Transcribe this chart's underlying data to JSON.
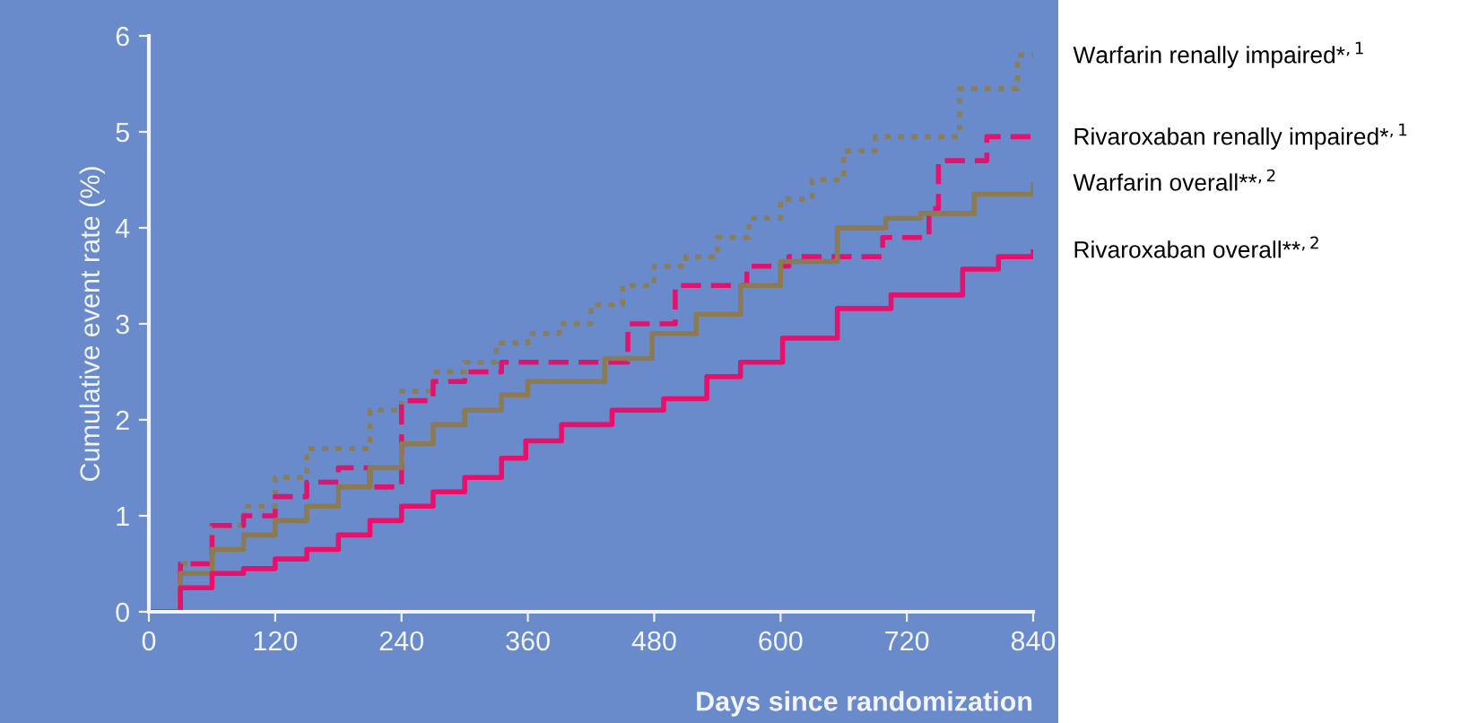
{
  "chart_data": {
    "type": "step",
    "xlabel": "Days since randomization",
    "ylabel": "Cumulative event rate (%)",
    "xlim": [
      0,
      840
    ],
    "ylim": [
      0,
      6
    ],
    "xticks": [
      0,
      120,
      240,
      360,
      480,
      600,
      720,
      840
    ],
    "yticks": [
      0,
      1,
      2,
      3,
      4,
      5,
      6
    ],
    "grid": false,
    "legend": false,
    "series": [
      {
        "name": "Warfarin renally impaired*$^{,1}$",
        "color": "#8a7d5c",
        "line_style": "dotted",
        "x": [
          0,
          30,
          60,
          90,
          120,
          150,
          180,
          210,
          240,
          270,
          300,
          330,
          360,
          390,
          420,
          450,
          480,
          510,
          540,
          570,
          600,
          630,
          660,
          690,
          760,
          770,
          820,
          825,
          840
        ],
        "values": [
          0,
          0.5,
          0.9,
          1.1,
          1.4,
          1.7,
          1.7,
          2.1,
          2.3,
          2.5,
          2.6,
          2.8,
          2.9,
          3.0,
          3.2,
          3.4,
          3.6,
          3.7,
          3.9,
          4.1,
          4.3,
          4.5,
          4.8,
          4.95,
          4.95,
          5.45,
          5.45,
          5.8,
          5.8
        ]
      },
      {
        "name": "Rivaroxaban renally impaired*$^{,1}$",
        "color": "#e0146e",
        "line_style": "dashed",
        "x": [
          0,
          30,
          60,
          90,
          120,
          150,
          180,
          210,
          240,
          270,
          300,
          335,
          433,
          455,
          500,
          568,
          608,
          697,
          741,
          750,
          796,
          840
        ],
        "values": [
          0,
          0.5,
          0.9,
          1.0,
          1.2,
          1.35,
          1.5,
          1.3,
          2.2,
          2.4,
          2.5,
          2.6,
          2.6,
          3.0,
          3.4,
          3.6,
          3.7,
          3.9,
          4.2,
          4.7,
          4.95,
          4.95
        ]
      },
      {
        "name": "Warfarin overall**$^{,2}$",
        "color": "#8b7a52",
        "line_style": "solid",
        "x": [
          0,
          30,
          60,
          90,
          120,
          150,
          180,
          210,
          240,
          270,
          300,
          335,
          360,
          433,
          478,
          520,
          562,
          600,
          654,
          700,
          733,
          784,
          840
        ],
        "values": [
          0,
          0.4,
          0.65,
          0.8,
          0.95,
          1.1,
          1.3,
          1.5,
          1.75,
          1.95,
          2.1,
          2.26,
          2.4,
          2.64,
          2.9,
          3.1,
          3.4,
          3.65,
          4.0,
          4.1,
          4.15,
          4.35,
          4.45
        ]
      },
      {
        "name": "Rivaroxaban overall**$^{,2}$",
        "color": "#e8106a",
        "line_style": "solid",
        "x": [
          0,
          30,
          60,
          90,
          120,
          150,
          180,
          210,
          240,
          270,
          300,
          335,
          358,
          392,
          440,
          489,
          530,
          562,
          602,
          654,
          705,
          745,
          773,
          807,
          840
        ],
        "values": [
          0,
          0.25,
          0.4,
          0.45,
          0.55,
          0.65,
          0.8,
          0.95,
          1.1,
          1.25,
          1.4,
          1.6,
          1.78,
          1.95,
          2.1,
          2.22,
          2.45,
          2.6,
          2.85,
          3.16,
          3.3,
          3.3,
          3.57,
          3.7,
          3.75
        ]
      }
    ]
  }
}
